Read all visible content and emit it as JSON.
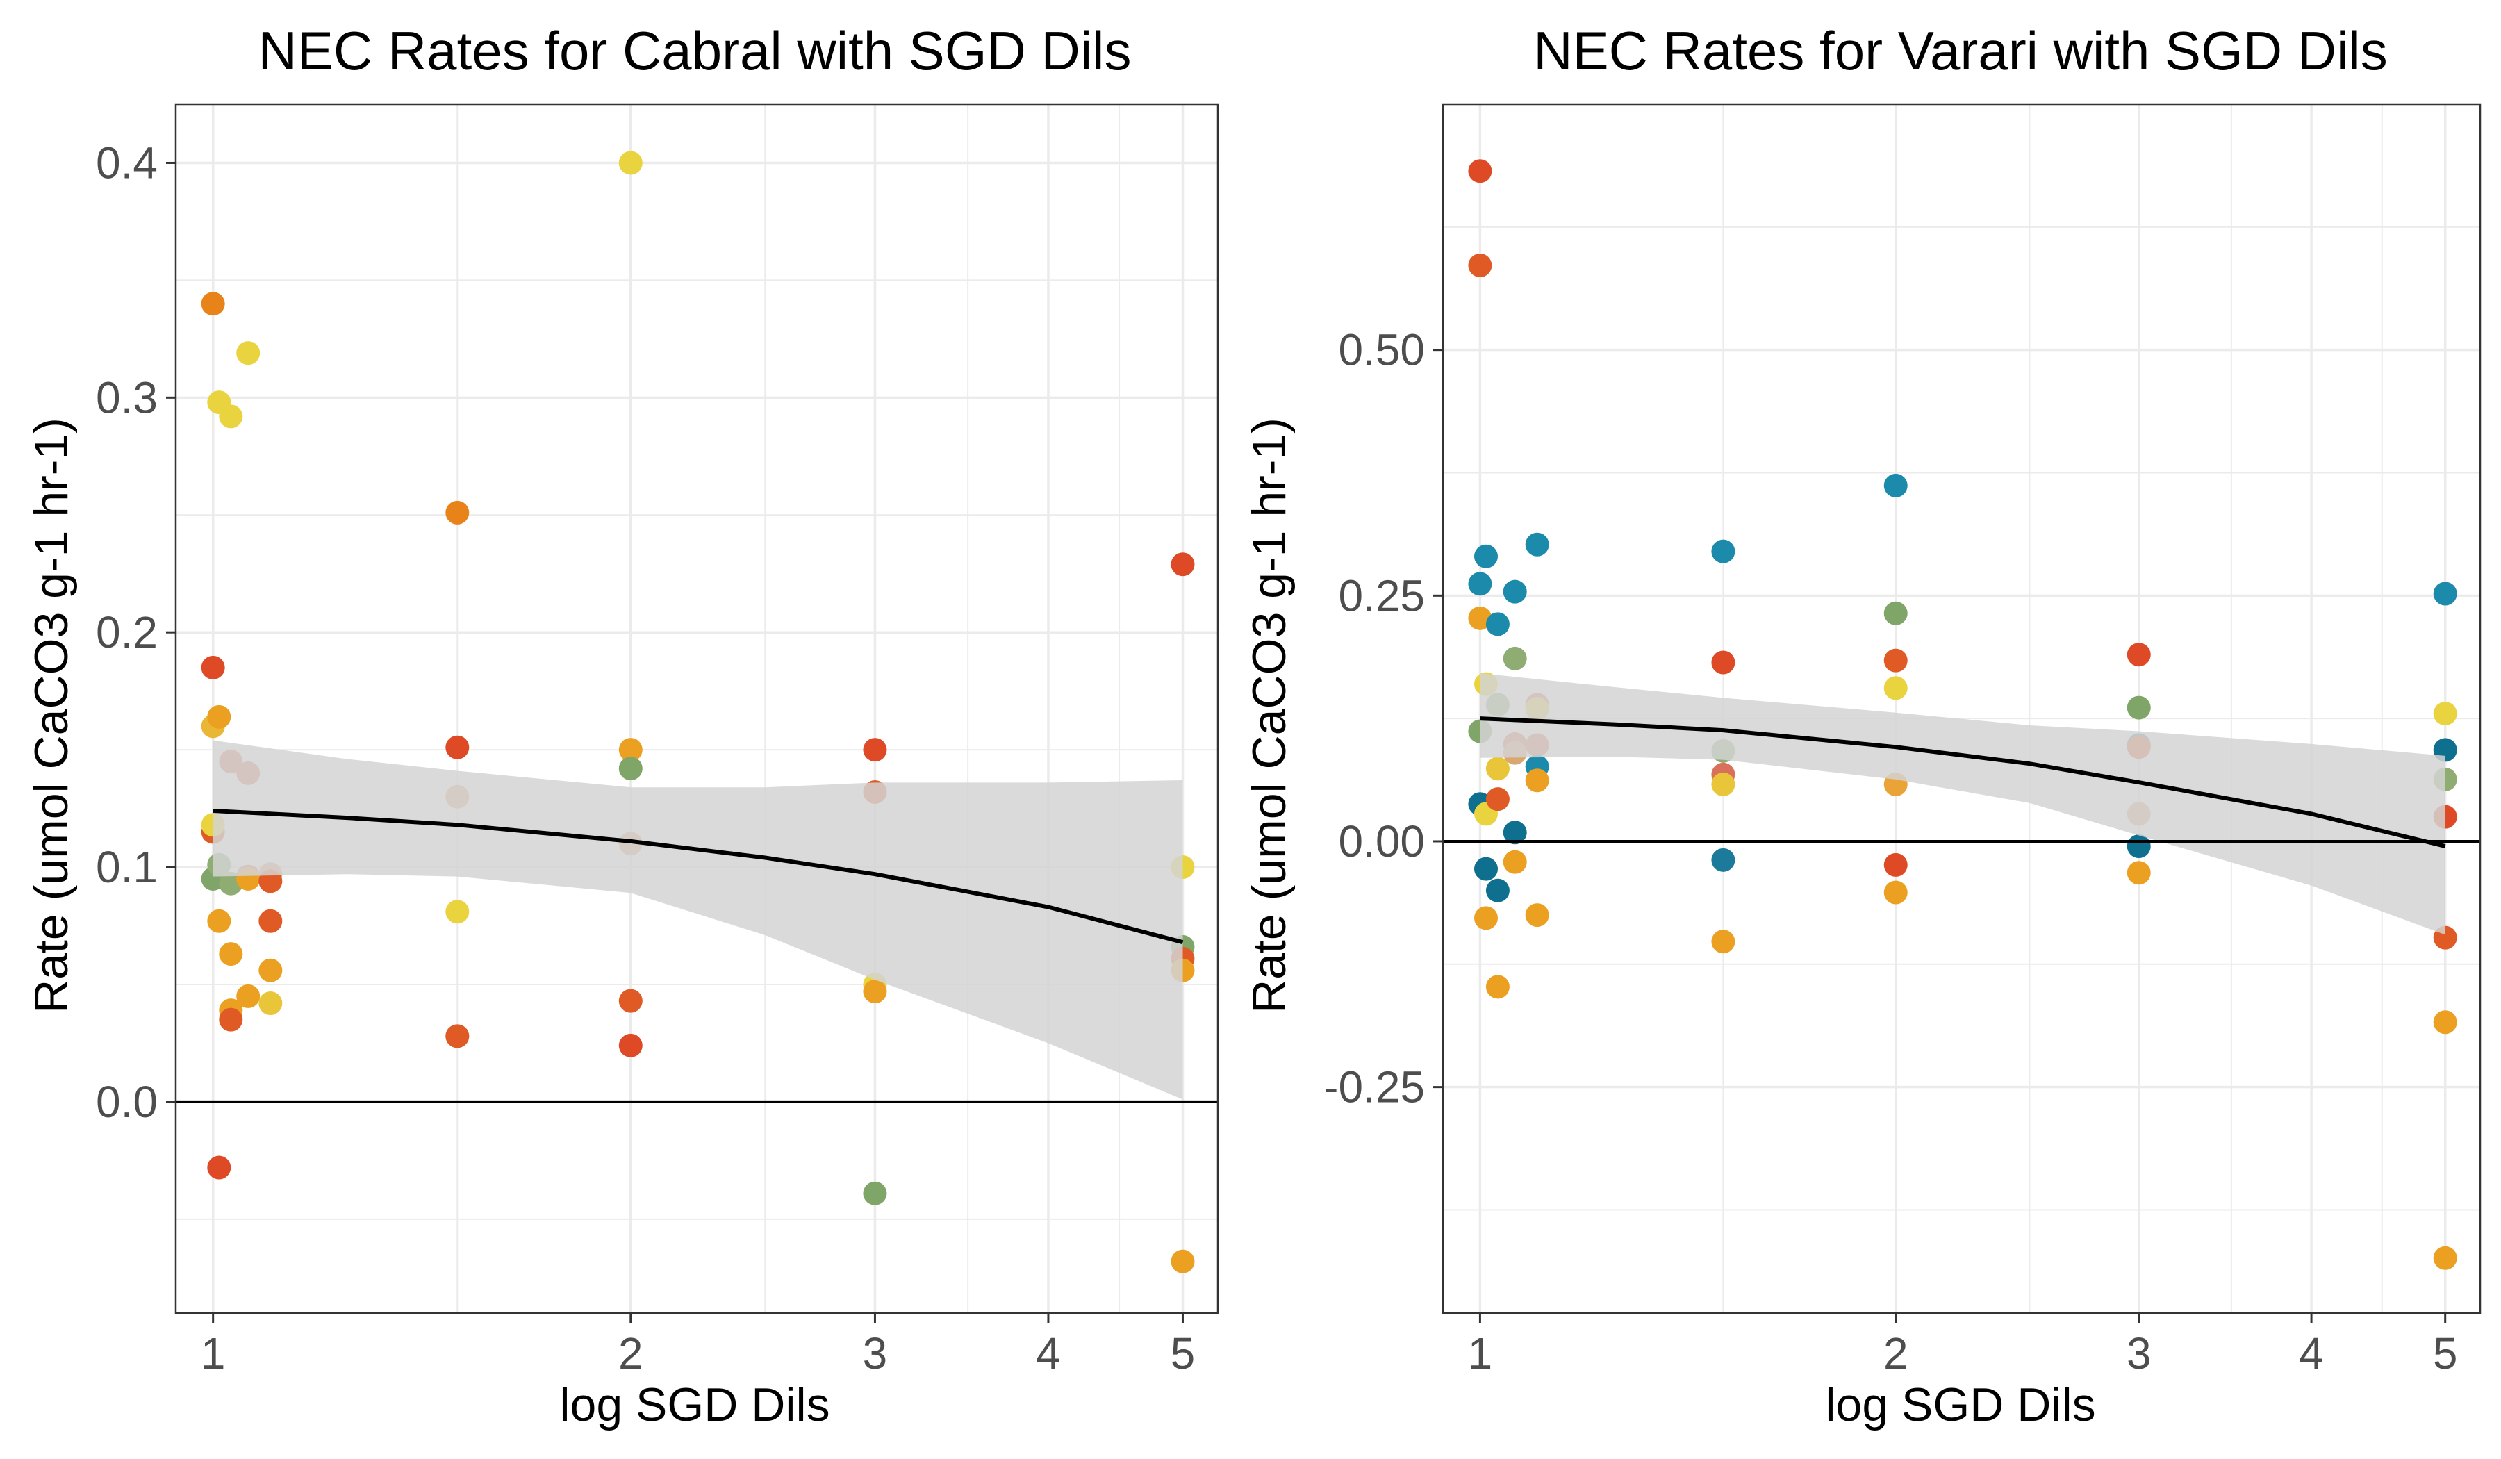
{
  "figure": {
    "background": "#ffffff",
    "panel_background": "#ffffff",
    "grid_color": "#ebebeb",
    "axis_color": "#333333",
    "text_color": "#000000",
    "tick_text_color": "#4d4d4d",
    "ribbon_color": "#d3d3d3",
    "fit_line_color": "#000000"
  },
  "chart_data": [
    {
      "type": "scatter",
      "title": "NEC Rates for Cabral with SGD Dils",
      "xlabel": "log SGD Dils",
      "ylabel": "Rate (umol CaCO3 g-1 hr-1)",
      "x_scale": "log",
      "xlim": [
        0.94,
        5.3
      ],
      "ylim": [
        -0.09,
        0.425
      ],
      "x_ticks": [
        1,
        2,
        3,
        4,
        5
      ],
      "x_tick_labels": [
        "1",
        "2",
        "3",
        "4",
        "5"
      ],
      "y_ticks": [
        0.0,
        0.1,
        0.2,
        0.3,
        0.4
      ],
      "y_tick_labels": [
        "0.0",
        "0.1",
        "0.2",
        "0.3",
        "0.4"
      ],
      "grid": true,
      "hline": 0,
      "fit": {
        "x": [
          1,
          1.25,
          1.5,
          2,
          2.5,
          3,
          4,
          5
        ],
        "y": [
          0.124,
          0.121,
          0.118,
          0.111,
          0.104,
          0.097,
          0.083,
          0.068
        ],
        "lower": [
          0.096,
          0.097,
          0.096,
          0.089,
          0.071,
          0.052,
          0.025,
          0.001
        ],
        "upper": [
          0.154,
          0.146,
          0.141,
          0.134,
          0.134,
          0.136,
          0.136,
          0.137
        ]
      },
      "points": [
        {
          "x": 1.0,
          "y": 0.34,
          "color": "#e8831a"
        },
        {
          "x": 1.0,
          "y": 0.185,
          "color": "#df4a26"
        },
        {
          "x": 1.0,
          "y": 0.16,
          "color": "#e9b636"
        },
        {
          "x": 1.0,
          "y": 0.115,
          "color": "#e05a25"
        },
        {
          "x": 1.0,
          "y": 0.118,
          "color": "#e9d33f"
        },
        {
          "x": 1.0,
          "y": 0.095,
          "color": "#7fa568"
        },
        {
          "x": 1.01,
          "y": -0.028,
          "color": "#df4a26"
        },
        {
          "x": 1.01,
          "y": 0.298,
          "color": "#e9d33f"
        },
        {
          "x": 1.01,
          "y": 0.164,
          "color": "#eba022"
        },
        {
          "x": 1.01,
          "y": 0.101,
          "color": "#8fac72"
        },
        {
          "x": 1.01,
          "y": 0.077,
          "color": "#eba022"
        },
        {
          "x": 1.03,
          "y": 0.292,
          "color": "#e9d33f"
        },
        {
          "x": 1.03,
          "y": 0.145,
          "color": "#d9705a"
        },
        {
          "x": 1.03,
          "y": 0.093,
          "color": "#8fac72"
        },
        {
          "x": 1.03,
          "y": 0.063,
          "color": "#eba022"
        },
        {
          "x": 1.03,
          "y": 0.039,
          "color": "#eba022"
        },
        {
          "x": 1.03,
          "y": 0.035,
          "color": "#e05a25"
        },
        {
          "x": 1.06,
          "y": 0.319,
          "color": "#e9d33f"
        },
        {
          "x": 1.06,
          "y": 0.14,
          "color": "#d9705a"
        },
        {
          "x": 1.06,
          "y": 0.096,
          "color": "#d9705a"
        },
        {
          "x": 1.06,
          "y": 0.095,
          "color": "#eba022"
        },
        {
          "x": 1.06,
          "y": 0.045,
          "color": "#eba022"
        },
        {
          "x": 1.1,
          "y": 0.097,
          "color": "#d9a070"
        },
        {
          "x": 1.1,
          "y": 0.094,
          "color": "#e05a25"
        },
        {
          "x": 1.1,
          "y": 0.077,
          "color": "#e05a25"
        },
        {
          "x": 1.1,
          "y": 0.056,
          "color": "#eba022"
        },
        {
          "x": 1.1,
          "y": 0.042,
          "color": "#e9c53a"
        },
        {
          "x": 1.5,
          "y": 0.251,
          "color": "#e8831a"
        },
        {
          "x": 1.5,
          "y": 0.151,
          "color": "#df4a26"
        },
        {
          "x": 1.5,
          "y": 0.13,
          "color": "#d9a770"
        },
        {
          "x": 1.5,
          "y": 0.081,
          "color": "#e9d33f"
        },
        {
          "x": 1.5,
          "y": 0.028,
          "color": "#8fac72"
        },
        {
          "x": 1.5,
          "y": 0.028,
          "color": "#e05a25"
        },
        {
          "x": 2.0,
          "y": 0.4,
          "color": "#e9d33f"
        },
        {
          "x": 2.0,
          "y": 0.15,
          "color": "#eba022"
        },
        {
          "x": 2.0,
          "y": 0.142,
          "color": "#7fa568"
        },
        {
          "x": 2.0,
          "y": 0.11,
          "color": "#d9a770"
        },
        {
          "x": 2.0,
          "y": 0.043,
          "color": "#e05a25"
        },
        {
          "x": 2.0,
          "y": 0.024,
          "color": "#df4a26"
        },
        {
          "x": 3.0,
          "y": 0.15,
          "color": "#df4a26"
        },
        {
          "x": 3.0,
          "y": 0.132,
          "color": "#e05a25"
        },
        {
          "x": 3.0,
          "y": 0.05,
          "color": "#e9d33f"
        },
        {
          "x": 3.0,
          "y": 0.047,
          "color": "#eba022"
        },
        {
          "x": 3.0,
          "y": -0.039,
          "color": "#7fa568"
        },
        {
          "x": 5.0,
          "y": 0.229,
          "color": "#df4a26"
        },
        {
          "x": 5.0,
          "y": 0.1,
          "color": "#e9d33f"
        },
        {
          "x": 5.0,
          "y": 0.066,
          "color": "#7fa568"
        },
        {
          "x": 5.0,
          "y": 0.061,
          "color": "#e05a25"
        },
        {
          "x": 5.0,
          "y": 0.056,
          "color": "#eba022"
        },
        {
          "x": 5.0,
          "y": -0.068,
          "color": "#eba022"
        }
      ]
    },
    {
      "type": "scatter",
      "title": "NEC Rates for Varari with SGD Dils",
      "xlabel": "log SGD Dils",
      "ylabel": "Rate (umol CaCO3 g-1 hr-1)",
      "x_scale": "log",
      "xlim": [
        0.94,
        5.3
      ],
      "ylim": [
        -0.48,
        0.75
      ],
      "x_ticks": [
        1,
        2,
        3,
        4,
        5
      ],
      "x_tick_labels": [
        "1",
        "2",
        "3",
        "4",
        "5"
      ],
      "y_ticks": [
        -0.25,
        0.0,
        0.25,
        0.5
      ],
      "y_tick_labels": [
        "-0.25",
        "0.00",
        "0.25",
        "0.50"
      ],
      "grid": true,
      "hline": 0,
      "fit": {
        "x": [
          1,
          1.25,
          1.5,
          2,
          2.5,
          3,
          4,
          5
        ],
        "y": [
          0.125,
          0.119,
          0.113,
          0.096,
          0.079,
          0.06,
          0.028,
          -0.005
        ],
        "lower": [
          0.085,
          0.086,
          0.083,
          0.063,
          0.039,
          0.006,
          -0.045,
          -0.095
        ],
        "upper": [
          0.171,
          0.157,
          0.146,
          0.131,
          0.118,
          0.112,
          0.099,
          0.087
        ]
      },
      "points": [
        {
          "x": 1.0,
          "y": 0.682,
          "color": "#df4a26"
        },
        {
          "x": 1.0,
          "y": 0.586,
          "color": "#e05a25"
        },
        {
          "x": 1.0,
          "y": 0.262,
          "color": "#1c8aaa"
        },
        {
          "x": 1.0,
          "y": 0.227,
          "color": "#eba022"
        },
        {
          "x": 1.0,
          "y": 0.112,
          "color": "#7fa568"
        },
        {
          "x": 1.0,
          "y": 0.038,
          "color": "#0f6f8f"
        },
        {
          "x": 1.01,
          "y": 0.29,
          "color": "#1c8aaa"
        },
        {
          "x": 1.01,
          "y": 0.16,
          "color": "#e9d33f"
        },
        {
          "x": 1.01,
          "y": 0.028,
          "color": "#e9d33f"
        },
        {
          "x": 1.01,
          "y": -0.028,
          "color": "#0f6f8f"
        },
        {
          "x": 1.01,
          "y": -0.078,
          "color": "#eba022"
        },
        {
          "x": 1.03,
          "y": 0.221,
          "color": "#1c8aaa"
        },
        {
          "x": 1.03,
          "y": 0.139,
          "color": "#8fac72"
        },
        {
          "x": 1.03,
          "y": 0.074,
          "color": "#e9c53a"
        },
        {
          "x": 1.03,
          "y": 0.043,
          "color": "#e05a25"
        },
        {
          "x": 1.03,
          "y": -0.05,
          "color": "#0f6f8f"
        },
        {
          "x": 1.03,
          "y": -0.148,
          "color": "#eba022"
        },
        {
          "x": 1.06,
          "y": 0.254,
          "color": "#1c8aaa"
        },
        {
          "x": 1.06,
          "y": 0.186,
          "color": "#8fac72"
        },
        {
          "x": 1.06,
          "y": 0.099,
          "color": "#d9705a"
        },
        {
          "x": 1.06,
          "y": 0.09,
          "color": "#d9a770"
        },
        {
          "x": 1.06,
          "y": 0.009,
          "color": "#0f6f8f"
        },
        {
          "x": 1.06,
          "y": -0.021,
          "color": "#eba022"
        },
        {
          "x": 1.1,
          "y": 0.302,
          "color": "#1c8aaa"
        },
        {
          "x": 1.1,
          "y": 0.139,
          "color": "#d9705a"
        },
        {
          "x": 1.1,
          "y": 0.135,
          "color": "#e9c53a"
        },
        {
          "x": 1.1,
          "y": 0.098,
          "color": "#d9705a"
        },
        {
          "x": 1.1,
          "y": 0.076,
          "color": "#1c8aaa"
        },
        {
          "x": 1.1,
          "y": 0.062,
          "color": "#eba022"
        },
        {
          "x": 1.1,
          "y": -0.075,
          "color": "#eba022"
        },
        {
          "x": 1.5,
          "y": 0.295,
          "color": "#1c8aaa"
        },
        {
          "x": 1.5,
          "y": 0.182,
          "color": "#df4a26"
        },
        {
          "x": 1.5,
          "y": 0.092,
          "color": "#8fac72"
        },
        {
          "x": 1.5,
          "y": 0.068,
          "color": "#d9705a"
        },
        {
          "x": 1.5,
          "y": 0.058,
          "color": "#e9c53a"
        },
        {
          "x": 1.5,
          "y": -0.019,
          "color": "#1c7a9a"
        },
        {
          "x": 1.5,
          "y": -0.102,
          "color": "#eba022"
        },
        {
          "x": 2.0,
          "y": 0.362,
          "color": "#1c8aaa"
        },
        {
          "x": 2.0,
          "y": 0.232,
          "color": "#7fa568"
        },
        {
          "x": 2.0,
          "y": 0.184,
          "color": "#e05a25"
        },
        {
          "x": 2.0,
          "y": 0.156,
          "color": "#e9d33f"
        },
        {
          "x": 2.0,
          "y": 0.058,
          "color": "#e9a336"
        },
        {
          "x": 2.0,
          "y": -0.024,
          "color": "#df4a26"
        },
        {
          "x": 2.0,
          "y": -0.052,
          "color": "#eba022"
        },
        {
          "x": 3.0,
          "y": 0.19,
          "color": "#df4a26"
        },
        {
          "x": 3.0,
          "y": 0.136,
          "color": "#7fa568"
        },
        {
          "x": 3.0,
          "y": 0.098,
          "color": "#1c8aaa"
        },
        {
          "x": 3.0,
          "y": 0.096,
          "color": "#e05a25"
        },
        {
          "x": 3.0,
          "y": 0.028,
          "color": "#d9a770"
        },
        {
          "x": 3.0,
          "y": -0.005,
          "color": "#0f6f8f"
        },
        {
          "x": 3.0,
          "y": -0.032,
          "color": "#eba022"
        },
        {
          "x": 5.0,
          "y": 0.252,
          "color": "#1c8aaa"
        },
        {
          "x": 5.0,
          "y": 0.13,
          "color": "#e9d33f"
        },
        {
          "x": 5.0,
          "y": 0.093,
          "color": "#0f6f8f"
        },
        {
          "x": 5.0,
          "y": 0.063,
          "color": "#8fac72"
        },
        {
          "x": 5.0,
          "y": 0.025,
          "color": "#df4a26"
        },
        {
          "x": 5.0,
          "y": -0.098,
          "color": "#e05a25"
        },
        {
          "x": 5.0,
          "y": -0.184,
          "color": "#eba022"
        },
        {
          "x": 5.0,
          "y": -0.424,
          "color": "#eba022"
        }
      ]
    }
  ]
}
